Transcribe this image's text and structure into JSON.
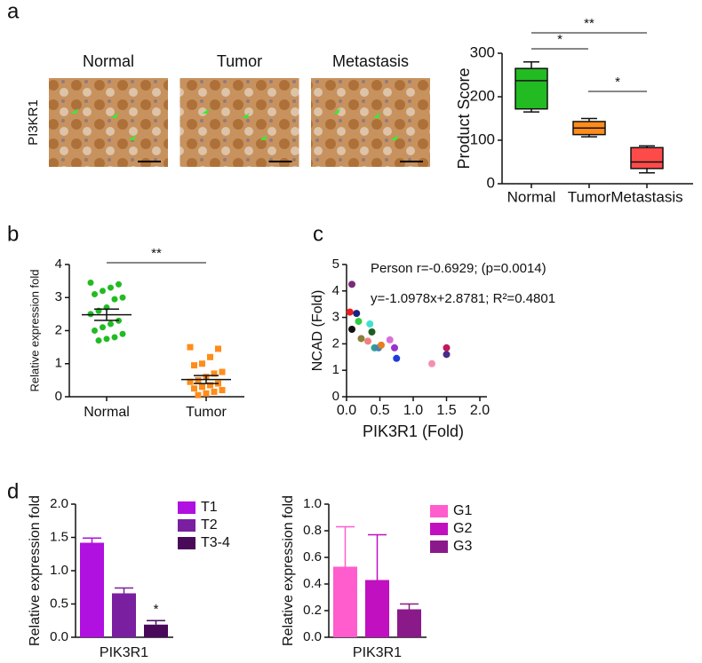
{
  "chart_data": [
    {
      "type": "box",
      "panel": "a",
      "image_titles": [
        "Normal",
        "Tumor",
        "Metastasis"
      ],
      "image_label": "PI3KR1",
      "ylabel": "Product Score",
      "categories": [
        "Normal",
        "Tumor",
        "Metastasis"
      ],
      "colors": [
        "#22bb22",
        "#ff8c1a",
        "#ff4a4a"
      ],
      "boxes": [
        {
          "min": 165,
          "q1": 172,
          "median": 237,
          "q3": 265,
          "max": 280
        },
        {
          "min": 108,
          "q1": 113,
          "median": 128,
          "q3": 143,
          "max": 150
        },
        {
          "min": 25,
          "q1": 35,
          "median": 50,
          "q3": 83,
          "max": 87
        }
      ],
      "ylim": [
        0,
        300
      ],
      "yticks": [
        0,
        100,
        200,
        300
      ],
      "annotations": [
        "**",
        "*",
        "*"
      ]
    },
    {
      "type": "strip",
      "panel": "b",
      "ylabel": "Relative expression fold",
      "categories": [
        "Normal",
        "Tumor"
      ],
      "color": [
        "#22bb22",
        "#ff8c1a"
      ],
      "groups": [
        [
          3.45,
          3.4,
          3.3,
          3.2,
          3.1,
          3.0,
          2.95,
          2.7,
          2.6,
          2.5,
          2.3,
          2.2,
          2.1,
          2.0,
          1.9,
          1.8,
          1.75,
          1.7
        ],
        [
          1.5,
          1.45,
          1.2,
          1.0,
          0.95,
          0.75,
          0.7,
          0.6,
          0.5,
          0.45,
          0.4,
          0.35,
          0.3,
          0.25,
          0.2,
          0.15,
          0.1,
          0.05
        ]
      ],
      "means": [
        2.48,
        0.52
      ],
      "sems": [
        0.17,
        0.12
      ],
      "ylim": [
        0,
        4
      ],
      "yticks": [
        0,
        1,
        2,
        3,
        4
      ],
      "annotations": [
        "**"
      ]
    },
    {
      "type": "scatter",
      "panel": "c",
      "xlabel": "PIK3R1 (Fold)",
      "ylabel": "NCAD (Fold)",
      "annotations": [
        "Person r=-0.6929; (p=0.0014)",
        "y=-1.0978x+2.8781; R²=0.4801"
      ],
      "x": [
        0.08,
        0.05,
        0.15,
        0.08,
        0.18,
        0.35,
        0.38,
        0.22,
        0.32,
        0.42,
        0.48,
        0.52,
        0.65,
        0.72,
        0.75,
        1.28,
        1.5,
        1.5
      ],
      "y": [
        4.25,
        3.2,
        3.15,
        2.55,
        2.85,
        2.75,
        2.45,
        2.2,
        2.1,
        1.85,
        1.85,
        1.95,
        2.15,
        1.85,
        1.45,
        1.25,
        1.85,
        1.6
      ],
      "colors": [
        "#7b2a7b",
        "#ee1c1c",
        "#1a237e",
        "#111111",
        "#2ecc40",
        "#40e0d0",
        "#1b5e20",
        "#8b7d3a",
        "#f08080",
        "#2aa198",
        "#4682b4",
        "#e67e22",
        "#da70d6",
        "#9932cc",
        "#1e3cdc",
        "#f48fb1",
        "#c2185b",
        "#4a2a8a"
      ],
      "xlim": [
        0,
        2
      ],
      "xticks": [
        {
          "value": 0,
          "label": "0.0"
        },
        0.5,
        {
          "value": 1,
          "label": "1.0"
        },
        1.5,
        {
          "value": 2,
          "label": "2.0"
        }
      ],
      "ylim": [
        0,
        5
      ],
      "yticks": [
        0,
        1,
        2,
        3,
        4,
        5
      ]
    },
    {
      "type": "bar",
      "panel": "d",
      "ylabel": "Relative expression fold",
      "categories": [
        "PIK3R1"
      ],
      "series": [
        {
          "name": "T1",
          "color": "#b010e0",
          "values": [
            1.42
          ],
          "errors": [
            0.07
          ]
        },
        {
          "name": "T2",
          "color": "#7a1fa0",
          "values": [
            0.66
          ],
          "errors": [
            0.08
          ]
        },
        {
          "name": "T3-4",
          "color": "#4a0a5a",
          "values": [
            0.19
          ],
          "errors": [
            0.06
          ]
        }
      ],
      "ylim": [
        0,
        2
      ],
      "yticks": [
        {
          "value": 0,
          "label": "0.0"
        },
        0.5,
        {
          "value": 1,
          "label": "1.0"
        },
        1.5,
        {
          "value": 2,
          "label": "2.0"
        }
      ],
      "annotations": [
        "*"
      ]
    },
    {
      "type": "bar",
      "ylabel": "Relative expression fold",
      "categories": [
        "PIK3R1"
      ],
      "series": [
        {
          "name": "G1",
          "color": "#ff5ccd",
          "values": [
            0.53
          ],
          "errors": [
            0.3
          ]
        },
        {
          "name": "G2",
          "color": "#c010c0",
          "values": [
            0.43
          ],
          "errors": [
            0.34
          ]
        },
        {
          "name": "G3",
          "color": "#8a1a8a",
          "values": [
            0.21
          ],
          "errors": [
            0.04
          ]
        }
      ],
      "ylim": [
        0,
        1
      ],
      "yticks": [
        {
          "value": 0,
          "label": "0.0"
        },
        0.2,
        0.4,
        0.6,
        0.8,
        {
          "value": 1,
          "label": "1.0"
        }
      ]
    }
  ]
}
